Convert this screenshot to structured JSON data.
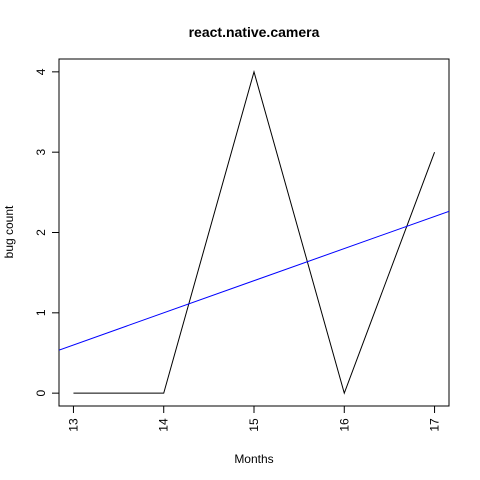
{
  "chart_data": {
    "type": "line",
    "title": "react.native.camera",
    "xlabel": "Months",
    "ylabel": "bug count",
    "x": [
      13,
      14,
      15,
      16,
      17
    ],
    "series": [
      {
        "values": [
          0,
          0,
          4,
          0,
          3
        ],
        "color": "#000000"
      }
    ],
    "trend_line": {
      "color": "#0000ff",
      "intercept": -4.6,
      "slope": 0.4
    },
    "x_ticks": [
      13,
      14,
      15,
      16,
      17
    ],
    "x_tick_labels": [
      "13",
      "14",
      "15",
      "16",
      "17"
    ],
    "y_ticks": [
      0,
      1,
      2,
      3,
      4
    ],
    "y_tick_labels": [
      "0",
      "1",
      "2",
      "3",
      "4"
    ],
    "xlim": [
      12.84,
      17.16
    ],
    "ylim": [
      -0.16,
      4.16
    ],
    "grid": false,
    "legend": "none"
  }
}
